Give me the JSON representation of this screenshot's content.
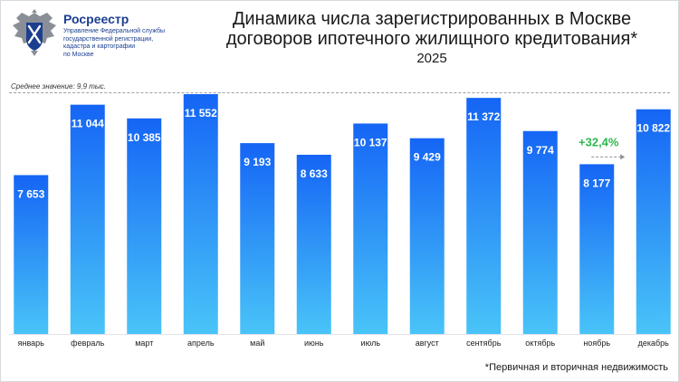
{
  "header": {
    "org_name": "Росреестр",
    "org_subtitle_lines": [
      "Управление Федеральной службы",
      "государственной регистрации,",
      "кадастра и картографии",
      "по Москве"
    ],
    "title_line1": "Динамика числа зарегистрированных в Москве",
    "title_line2": "договоров ипотечного жилищного кредитования*",
    "year": "2025"
  },
  "average_label": "Среднее значение: 9,9 тыс.",
  "footnote": "*Первичная и вторичная недвижимость",
  "annotation": {
    "text": "+32,4%",
    "color": "#2db84d"
  },
  "colors": {
    "bar_top": "#1565f5",
    "bar_bottom": "#49c4f8",
    "brand": "#1b3f8f"
  },
  "chart_data": {
    "type": "bar",
    "categories": [
      "январь",
      "февраль",
      "март",
      "апрель",
      "май",
      "июнь",
      "июль",
      "август",
      "сентябрь",
      "октябрь",
      "ноябрь",
      "декабрь"
    ],
    "values": [
      7653,
      11044,
      10385,
      11552,
      9193,
      8633,
      10137,
      9429,
      11372,
      9774,
      8177,
      10822
    ],
    "value_labels": [
      "7 653",
      "11 044",
      "10 385",
      "11 552",
      "9 193",
      "8 633",
      "10 137",
      "9 429",
      "11 372",
      "9 774",
      "8 177",
      "10 822"
    ],
    "average": 9900,
    "ylim": [
      0,
      11552
    ],
    "xlabel": "",
    "ylabel": "",
    "grid": false
  }
}
